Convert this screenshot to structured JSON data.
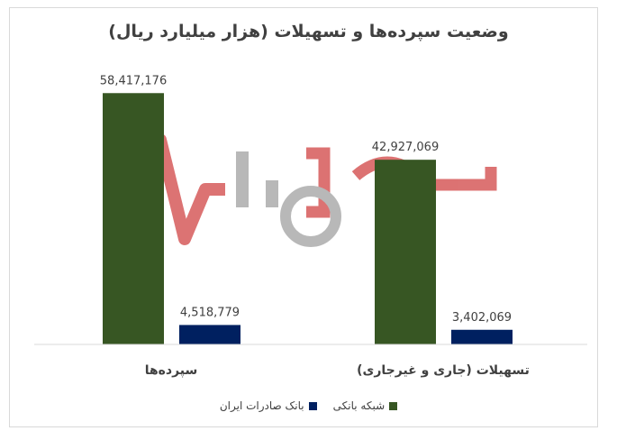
{
  "chart_data": {
    "type": "bar",
    "title": "وضعیت سپرده‌ها و تسهیلات (هزار میلیارد ریال)",
    "categories": [
      "سپرده‌ها",
      "تسهیلات (جاری و غیرجاری)"
    ],
    "series": [
      {
        "name": "شبکه بانکی",
        "color": "#375623",
        "values": [
          58417176,
          42927069
        ]
      },
      {
        "name": "بانک صادرات ایران",
        "color": "#002060",
        "values": [
          4518779,
          3402069
        ]
      }
    ],
    "value_labels": [
      [
        "58,417,176",
        "42,927,069"
      ],
      [
        "4,518,779",
        "3,402,069"
      ]
    ],
    "ylim": [
      0,
      70000000
    ],
    "xlabel": "",
    "ylabel": "",
    "grid": false,
    "legend_position": "bottom"
  },
  "watermark": {
    "icon": "logo-watermark-icon"
  }
}
